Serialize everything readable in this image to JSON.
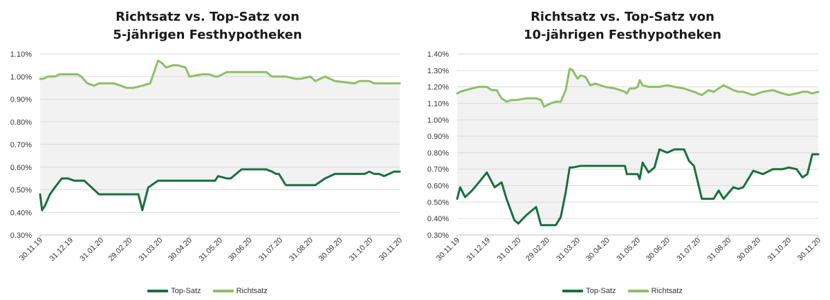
{
  "colors": {
    "top": "#17703d",
    "richt": "#8dbf65",
    "band": "#f2f2f2",
    "grid": "#d9d9d9",
    "axis": "#bfbfbf",
    "text": "#333333"
  },
  "chart_data": [
    {
      "type": "line",
      "title_line1": "Richtsatz vs. Top-Satz von",
      "title_line2": "5-jährigen Festhypotheken",
      "ylim": [
        0.3,
        1.1
      ],
      "ystep": 0.1,
      "yticks": [
        "0.30%",
        "0.40%",
        "0.50%",
        "0.60%",
        "0.70%",
        "0.80%",
        "0.90%",
        "1.00%",
        "1.10%"
      ],
      "xlim": [
        0,
        366
      ],
      "xtick_labels": [
        "30.11.19",
        "31.12.19",
        "31.01.20",
        "29.02.20",
        "31.03.20",
        "30.04.20",
        "31.05.20",
        "30.06.20",
        "31.07.20",
        "31.08.20",
        "30.09.20",
        "31.10.20",
        "30.11.20"
      ],
      "xtick_days": [
        0,
        31,
        62,
        91,
        122,
        152,
        183,
        213,
        244,
        275,
        305,
        336,
        366
      ],
      "series": [
        {
          "name": "Top-Satz",
          "color_key": "top",
          "x": [
            0,
            2,
            5,
            10,
            15,
            22,
            28,
            35,
            38,
            45,
            60,
            65,
            75,
            88,
            95,
            100,
            104,
            110,
            120,
            130,
            140,
            160,
            170,
            178,
            181,
            190,
            194,
            205,
            220,
            230,
            236,
            240,
            243,
            250,
            260,
            265,
            275,
            280,
            290,
            300,
            320,
            325,
            330,
            335,
            340,
            345,
            350,
            355,
            360,
            366
          ],
          "y": [
            0.48,
            0.41,
            0.43,
            0.48,
            0.51,
            0.55,
            0.55,
            0.54,
            0.54,
            0.54,
            0.48,
            0.48,
            0.48,
            0.48,
            0.48,
            0.48,
            0.41,
            0.51,
            0.54,
            0.54,
            0.54,
            0.54,
            0.54,
            0.54,
            0.56,
            0.55,
            0.55,
            0.59,
            0.59,
            0.59,
            0.58,
            0.57,
            0.57,
            0.52,
            0.52,
            0.52,
            0.52,
            0.52,
            0.55,
            0.57,
            0.57,
            0.57,
            0.57,
            0.58,
            0.57,
            0.57,
            0.56,
            0.57,
            0.58,
            0.58
          ]
        },
        {
          "name": "Richtsatz",
          "color_key": "richt",
          "x": [
            0,
            3,
            8,
            15,
            20,
            25,
            30,
            38,
            42,
            48,
            55,
            60,
            75,
            82,
            88,
            95,
            104,
            112,
            116,
            120,
            124,
            128,
            135,
            140,
            148,
            152,
            165,
            172,
            178,
            181,
            190,
            194,
            205,
            220,
            230,
            236,
            240,
            243,
            250,
            260,
            265,
            275,
            280,
            290,
            300,
            320,
            325,
            330,
            335,
            340,
            345,
            350,
            355,
            360,
            366
          ],
          "y": [
            0.99,
            0.99,
            1.0,
            1.0,
            1.01,
            1.01,
            1.01,
            1.01,
            1.0,
            0.97,
            0.96,
            0.97,
            0.97,
            0.96,
            0.95,
            0.95,
            0.96,
            0.97,
            1.02,
            1.07,
            1.06,
            1.04,
            1.05,
            1.05,
            1.04,
            1.0,
            1.01,
            1.01,
            1.0,
            1.0,
            1.02,
            1.02,
            1.02,
            1.02,
            1.02,
            1.0,
            1.0,
            1.0,
            1.0,
            0.99,
            0.99,
            1.0,
            0.98,
            1.0,
            0.98,
            0.97,
            0.98,
            0.98,
            0.98,
            0.97,
            0.97,
            0.97,
            0.97,
            0.97,
            0.97
          ]
        }
      ]
    },
    {
      "type": "line",
      "title_line1": "Richtsatz vs. Top-Satz von",
      "title_line2": "10-jährigen Festhypotheken",
      "ylim": [
        0.3,
        1.4
      ],
      "ystep": 0.1,
      "yticks": [
        "0.30%",
        "0.40%",
        "0.50%",
        "0.60%",
        "0.70%",
        "0.80%",
        "0.90%",
        "1.00%",
        "1.10%",
        "1.20%",
        "1.30%",
        "1.40%"
      ],
      "xlim": [
        0,
        366
      ],
      "xtick_labels": [
        "30.11.19",
        "31.12.19",
        "31.01.20",
        "29.02.20",
        "31.03.20",
        "30.04.20",
        "31.05.20",
        "30.06.20",
        "31.07.20",
        "31.08.20",
        "30.09.20",
        "31.10.20",
        "30.11.20"
      ],
      "xtick_days": [
        0,
        31,
        62,
        91,
        122,
        152,
        183,
        213,
        244,
        275,
        305,
        336,
        366
      ],
      "series": [
        {
          "name": "Top-Satz",
          "color_key": "top",
          "x": [
            0,
            3,
            8,
            15,
            22,
            30,
            38,
            45,
            50,
            58,
            62,
            70,
            80,
            85,
            88,
            95,
            100,
            105,
            110,
            114,
            117,
            125,
            140,
            150,
            160,
            170,
            172,
            175,
            180,
            183,
            185,
            188,
            194,
            200,
            205,
            213,
            220,
            230,
            235,
            240,
            248,
            255,
            260,
            265,
            270,
            280,
            285,
            290,
            300,
            310,
            320,
            330,
            336,
            344,
            350,
            355,
            360,
            366
          ],
          "y": [
            0.52,
            0.59,
            0.53,
            0.57,
            0.62,
            0.68,
            0.59,
            0.62,
            0.52,
            0.39,
            0.37,
            0.42,
            0.47,
            0.36,
            0.36,
            0.36,
            0.36,
            0.41,
            0.56,
            0.71,
            0.71,
            0.72,
            0.72,
            0.72,
            0.72,
            0.72,
            0.67,
            0.67,
            0.67,
            0.67,
            0.64,
            0.74,
            0.68,
            0.71,
            0.82,
            0.8,
            0.82,
            0.82,
            0.75,
            0.72,
            0.52,
            0.52,
            0.52,
            0.57,
            0.52,
            0.59,
            0.58,
            0.59,
            0.69,
            0.67,
            0.7,
            0.7,
            0.71,
            0.7,
            0.65,
            0.67,
            0.79,
            0.79
          ]
        },
        {
          "name": "Richtsatz",
          "color_key": "richt",
          "x": [
            0,
            3,
            8,
            15,
            22,
            30,
            35,
            40,
            45,
            50,
            55,
            60,
            70,
            80,
            85,
            88,
            95,
            100,
            105,
            110,
            114,
            117,
            122,
            125,
            130,
            135,
            140,
            145,
            150,
            160,
            170,
            172,
            175,
            180,
            183,
            185,
            188,
            194,
            200,
            205,
            213,
            220,
            230,
            235,
            240,
            248,
            255,
            260,
            265,
            270,
            280,
            285,
            290,
            300,
            310,
            320,
            330,
            336,
            344,
            350,
            355,
            360,
            366
          ],
          "y": [
            1.16,
            1.17,
            1.18,
            1.19,
            1.2,
            1.2,
            1.18,
            1.18,
            1.13,
            1.11,
            1.12,
            1.12,
            1.13,
            1.13,
            1.12,
            1.08,
            1.1,
            1.11,
            1.11,
            1.18,
            1.31,
            1.3,
            1.25,
            1.27,
            1.26,
            1.21,
            1.22,
            1.21,
            1.2,
            1.19,
            1.17,
            1.16,
            1.19,
            1.19,
            1.2,
            1.24,
            1.21,
            1.2,
            1.2,
            1.2,
            1.21,
            1.2,
            1.19,
            1.18,
            1.17,
            1.15,
            1.18,
            1.17,
            1.19,
            1.21,
            1.18,
            1.17,
            1.17,
            1.15,
            1.17,
            1.18,
            1.16,
            1.15,
            1.16,
            1.17,
            1.17,
            1.16,
            1.17
          ]
        }
      ]
    }
  ]
}
